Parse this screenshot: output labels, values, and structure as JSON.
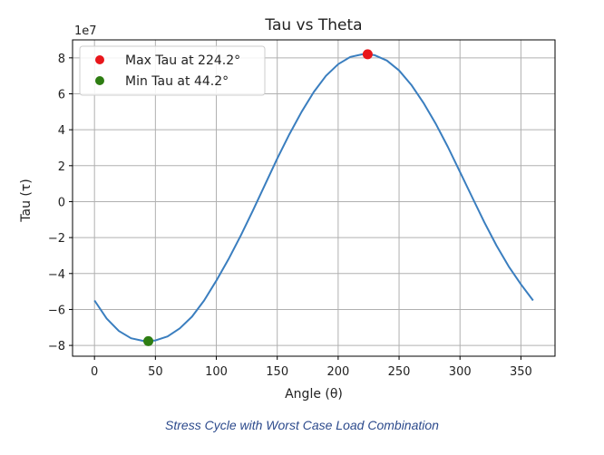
{
  "chart_data": {
    "type": "line",
    "title": "Tau vs Theta",
    "xlabel": "Angle (θ)",
    "ylabel": "Tau (τ)",
    "y_offset_label": "1e7",
    "xlim": [
      -18,
      378
    ],
    "ylim": [
      -8.6,
      9.0
    ],
    "x_ticks": [
      0,
      50,
      100,
      150,
      200,
      250,
      300,
      350
    ],
    "y_ticks": [
      -8,
      -6,
      -4,
      -2,
      0,
      2,
      4,
      6,
      8
    ],
    "y_tick_labels": [
      "−8",
      "−6",
      "−4",
      "−2",
      "0",
      "2",
      "4",
      "6",
      "8"
    ],
    "grid": true,
    "legend_position": "top-left",
    "curve": {
      "color": "#3a7ebf",
      "x": [
        0,
        10,
        20,
        30,
        40,
        44.2,
        50,
        60,
        70,
        80,
        90,
        100,
        110,
        120,
        130,
        140,
        150,
        160,
        170,
        180,
        190,
        200,
        210,
        220,
        224.2,
        230,
        240,
        250,
        260,
        270,
        280,
        290,
        300,
        310,
        320,
        330,
        340,
        350,
        360
      ],
      "y": [
        -5.5,
        -6.5,
        -7.2,
        -7.6,
        -7.75,
        -7.76,
        -7.72,
        -7.5,
        -7.05,
        -6.4,
        -5.5,
        -4.4,
        -3.2,
        -1.9,
        -0.5,
        0.95,
        2.4,
        3.75,
        5.0,
        6.1,
        7.0,
        7.65,
        8.05,
        8.2,
        8.2,
        8.15,
        7.85,
        7.3,
        6.5,
        5.5,
        4.35,
        3.05,
        1.65,
        0.25,
        -1.15,
        -2.45,
        -3.6,
        -4.6,
        -5.5
      ]
    },
    "markers": [
      {
        "label": "Max Tau at 224.2°",
        "x": 224.2,
        "y": 8.2,
        "color": "#e8161b"
      },
      {
        "label": "Min Tau at 44.2°",
        "x": 44.2,
        "y": -7.76,
        "color": "#2e7d12"
      }
    ]
  },
  "caption": "Stress Cycle with Worst Case Load Combination"
}
